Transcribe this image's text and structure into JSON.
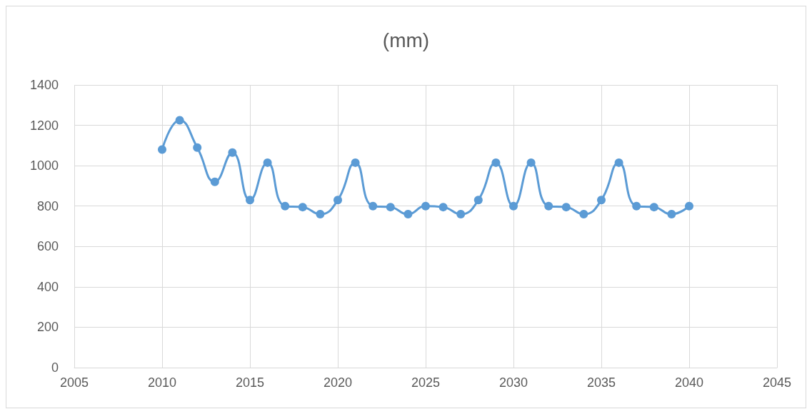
{
  "chart_data": {
    "type": "line",
    "title": "(mm)",
    "x": [
      2010,
      2011,
      2012,
      2013,
      2014,
      2015,
      2016,
      2017,
      2018,
      2019,
      2020,
      2021,
      2022,
      2023,
      2024,
      2025,
      2026,
      2027,
      2028,
      2029,
      2030,
      2031,
      2032,
      2033,
      2034,
      2035,
      2036,
      2037,
      2038,
      2039,
      2040
    ],
    "series": [
      {
        "color": "#5b9bd5",
        "values": [
          1080,
          1225,
          1090,
          920,
          1065,
          830,
          1015,
          800,
          795,
          760,
          830,
          1015,
          800,
          795,
          760,
          800,
          795,
          760,
          830,
          1015,
          800,
          1015,
          800,
          795,
          760,
          830,
          1015,
          800,
          795,
          760,
          800
        ]
      }
    ],
    "xlim": [
      2005,
      2045
    ],
    "xticks": [
      2005,
      2010,
      2015,
      2020,
      2025,
      2030,
      2035,
      2040,
      2045
    ],
    "ylim": [
      0,
      1400
    ],
    "yticks": [
      0,
      200,
      400,
      600,
      800,
      1000,
      1200,
      1400
    ],
    "grid": true,
    "marker": "circle",
    "line_style": "solid"
  }
}
